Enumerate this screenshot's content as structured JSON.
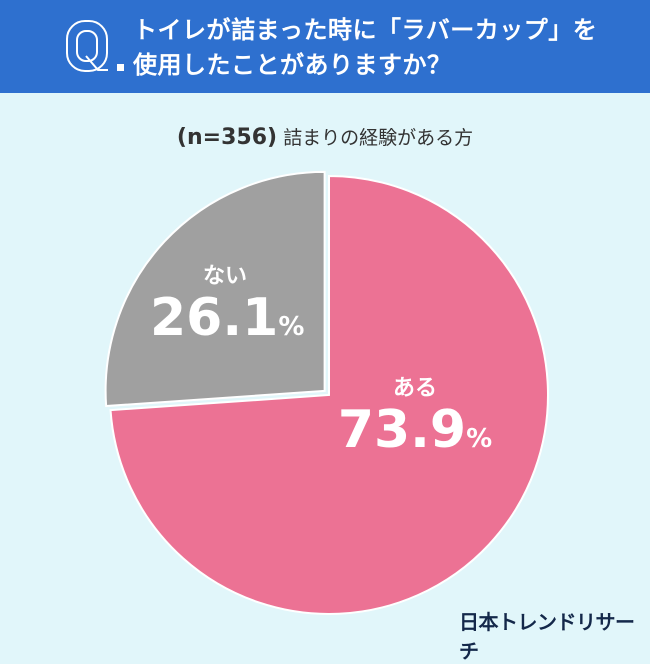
{
  "header": {
    "q_label": "Q.",
    "question_line1": "トイレが詰まった時に「ラバーカップ」を",
    "question_line2": "使用したことがありますか？"
  },
  "subtitle": {
    "n": "(n=356)",
    "text": "詰まりの経験がある方"
  },
  "chart_data": {
    "type": "pie",
    "categories": [
      "ある",
      "ない"
    ],
    "values": [
      73.9,
      26.1
    ],
    "unit": "%",
    "colors": [
      "#ec7294",
      "#a0a0a0"
    ],
    "start": "12 o'clock, clockwise",
    "labels": {
      "yes": {
        "name": "ある",
        "value": "73.9",
        "unit": "%"
      },
      "no": {
        "name": "ない",
        "value": "26.1",
        "unit": "%"
      }
    }
  },
  "logo": "日本トレンドリサーチ",
  "colors": {
    "header": "#2e70cf",
    "background": "#e1f6fa"
  }
}
